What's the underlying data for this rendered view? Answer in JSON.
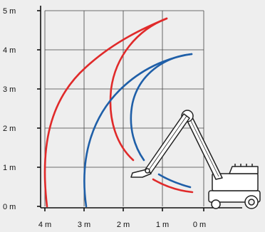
{
  "axes": {
    "y_labels": [
      "5 m",
      "4 m",
      "3 m",
      "2 m",
      "1 m",
      "0 m"
    ],
    "x_labels": [
      "4 m",
      "3 m",
      "2 m",
      "1 m",
      "0 m"
    ]
  },
  "colors": {
    "background": "#eeeeee",
    "grid": "#444444",
    "axis": "#111111",
    "reach_curve_red": "#e02a2a",
    "reach_curve_blue": "#1f5fa8",
    "machine_outline": "#222222"
  },
  "icons": [
    "excavator-crane-icon"
  ]
}
